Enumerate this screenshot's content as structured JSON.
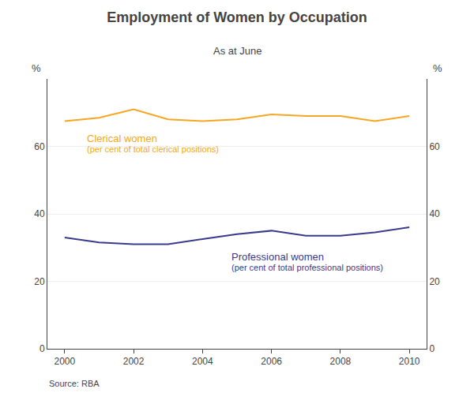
{
  "chart_data": {
    "type": "line",
    "title": "Employment of Women by Occupation",
    "subtitle": "As at June",
    "source": "Source: RBA",
    "ylabel": "%",
    "y2label": "%",
    "x": [
      2000,
      2001,
      2002,
      2003,
      2004,
      2005,
      2006,
      2007,
      2008,
      2009,
      2010
    ],
    "series": [
      {
        "color": "#F5A623",
        "values": [
          67.5,
          68.5,
          71.0,
          68.0,
          67.5,
          68.0,
          69.5,
          69.0,
          69.0,
          67.5,
          69.0
        ]
      },
      {
        "color": "#3A3A8C",
        "values": [
          33.0,
          31.5,
          31.0,
          31.0,
          32.5,
          34.0,
          35.0,
          33.5,
          33.5,
          34.5,
          36.0
        ]
      }
    ],
    "xlim": [
      1999.5,
      2010.5
    ],
    "xticks": [
      2000,
      2002,
      2004,
      2006,
      2008,
      2010
    ],
    "ylim": [
      0,
      80
    ],
    "yticks": [
      0,
      20,
      40,
      60
    ],
    "y2lim": [
      0,
      80
    ],
    "y2ticks": [
      0,
      20,
      40,
      60
    ],
    "grid": true,
    "annotations": [
      {
        "text": "Clerical women",
        "x": 2000.6,
        "y": 64.5,
        "color": "#F5A623"
      },
      {
        "text": "(per cent of total clerical positions)",
        "x": 2000.6,
        "y": 61.0,
        "color": "#F5A623"
      },
      {
        "text": "Professional women",
        "x": 2004.8,
        "y": 29.5,
        "color": "#3A3A8C"
      },
      {
        "text": "(per cent of total professional positions)",
        "x": 2004.8,
        "y": 26.0,
        "color": "#3A3A8C"
      }
    ]
  }
}
